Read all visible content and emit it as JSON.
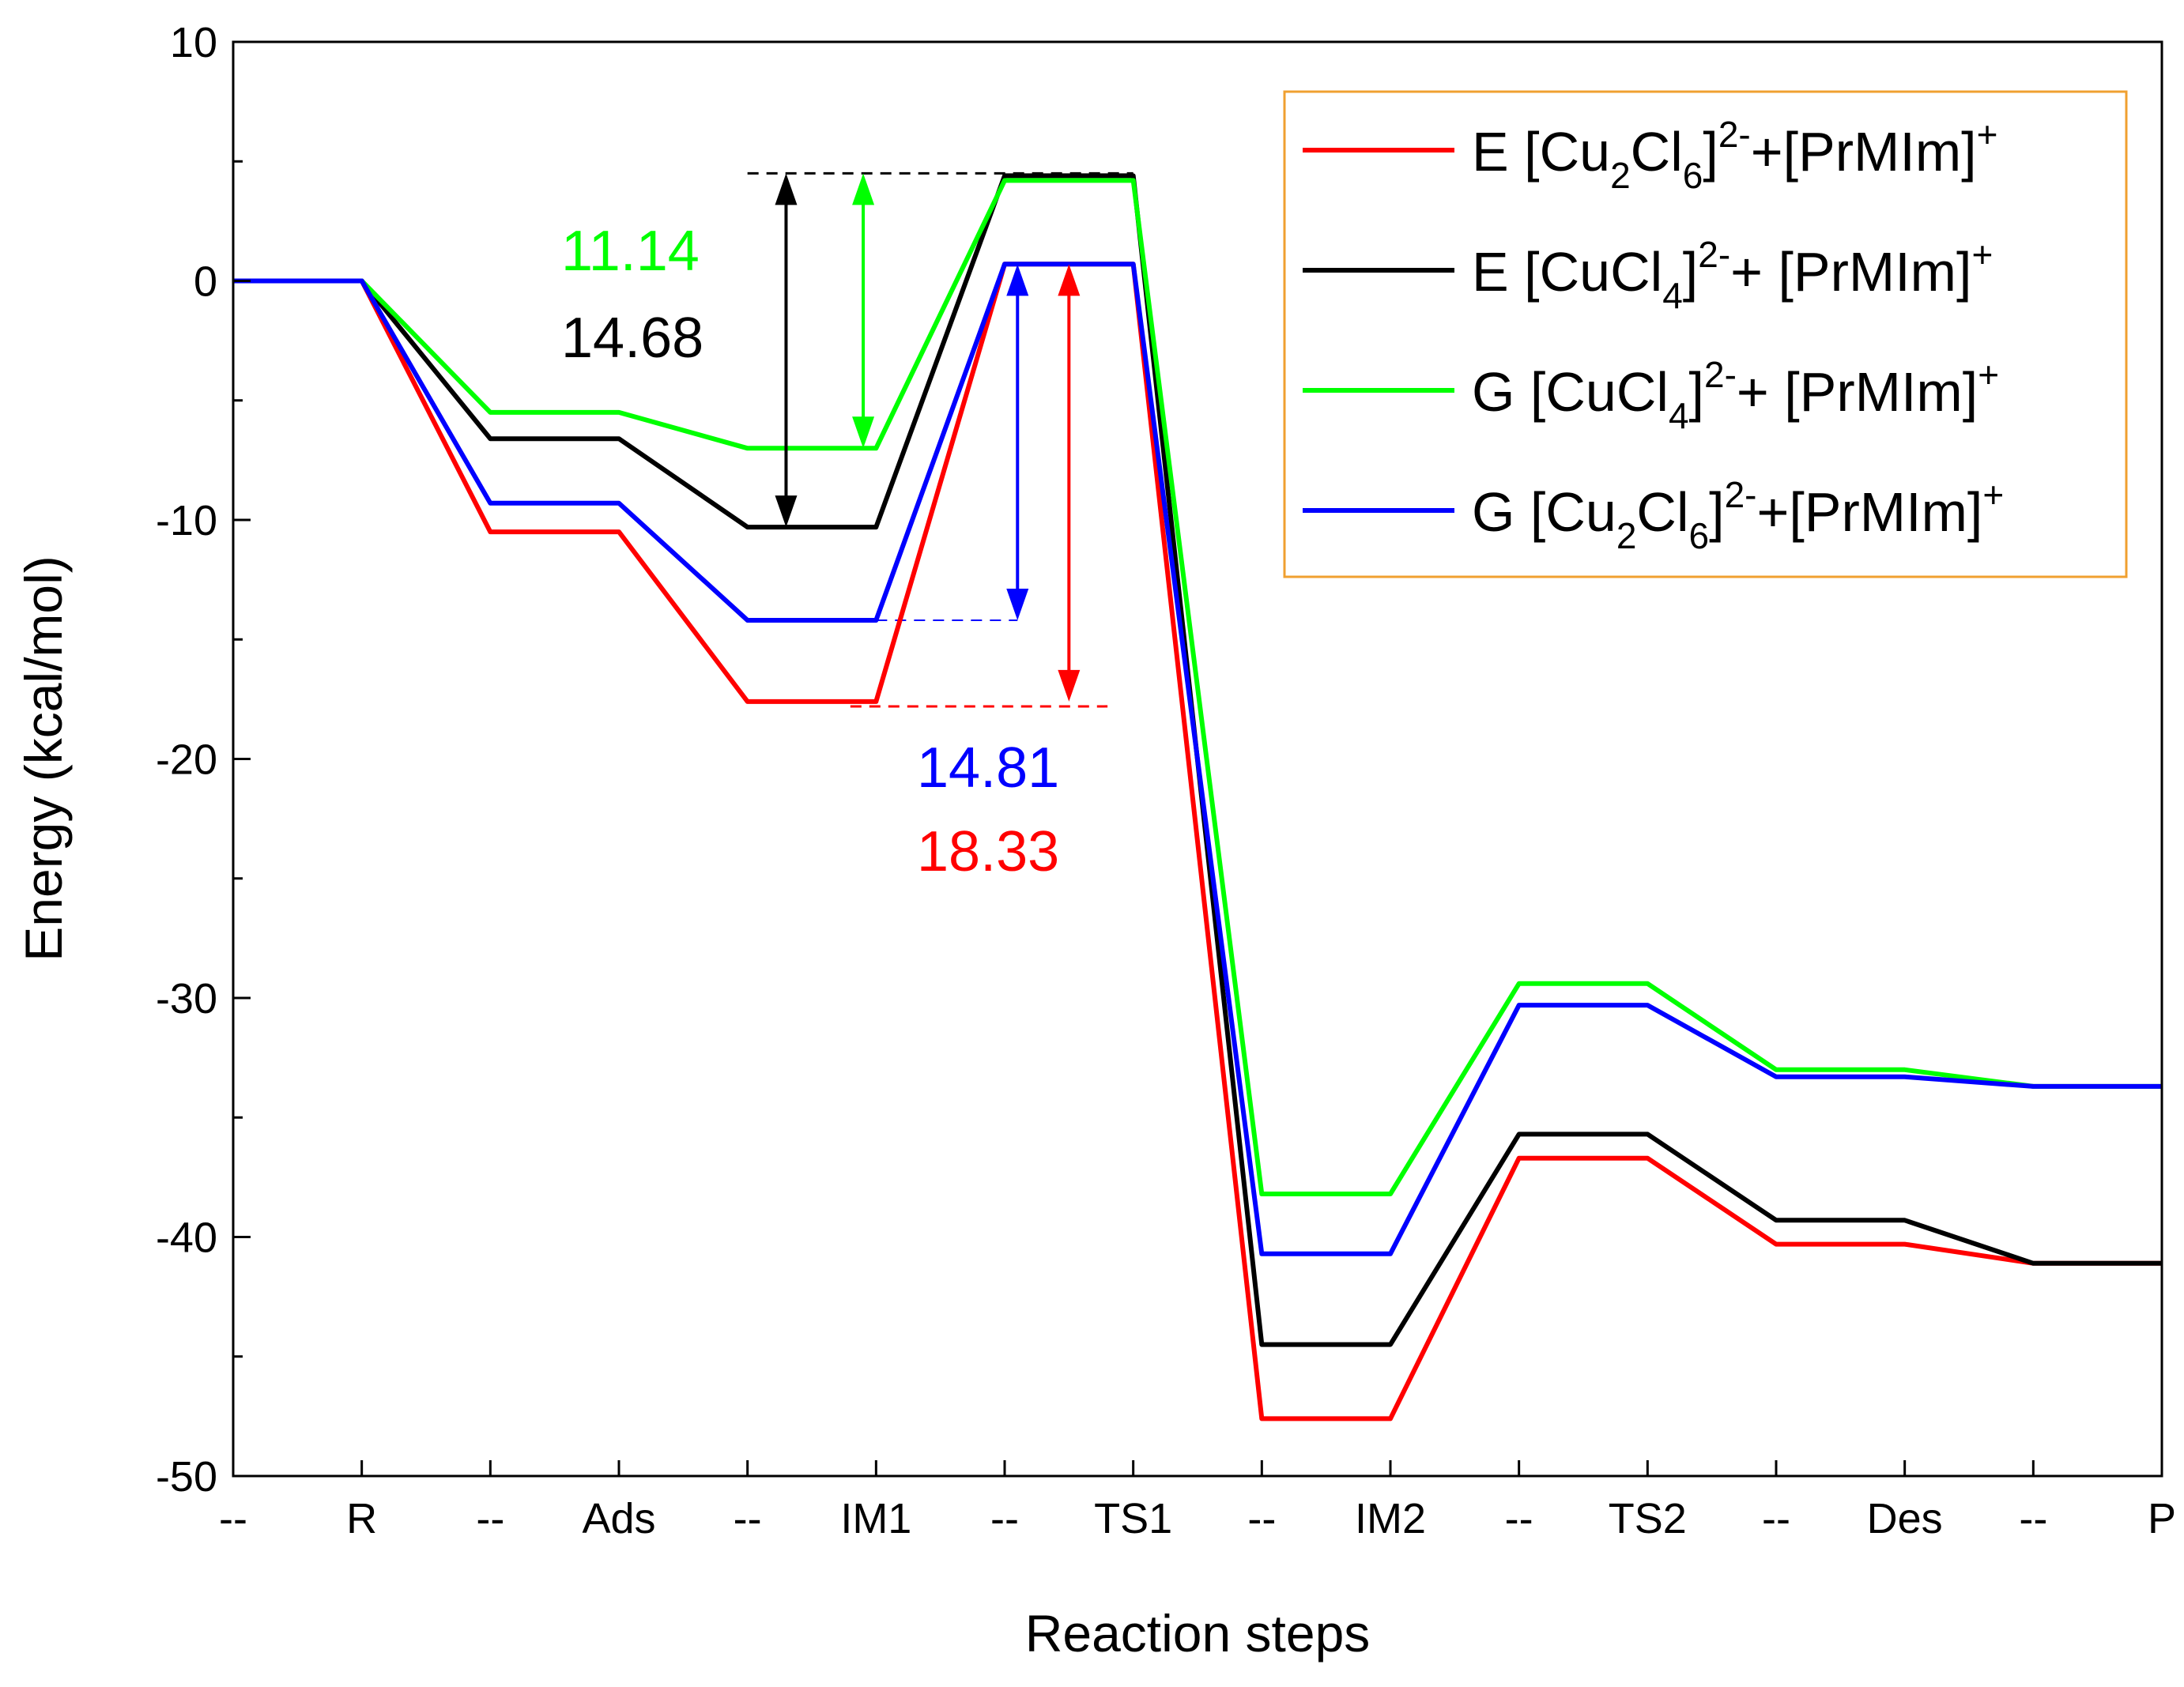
{
  "chart_data": {
    "type": "line",
    "title": "",
    "xlabel": "Reaction steps",
    "ylabel": "Energy (kcal/mol)",
    "ylim": [
      -50,
      10
    ],
    "yticks": [
      10,
      0,
      -10,
      -20,
      -30,
      -40,
      -50
    ],
    "x_range": [
      0,
      15
    ],
    "x_ticks": [
      {
        "x": 0,
        "label": "--"
      },
      {
        "x": 1,
        "label": "R"
      },
      {
        "x": 2,
        "label": "--"
      },
      {
        "x": 3,
        "label": "Ads"
      },
      {
        "x": 4,
        "label": "--"
      },
      {
        "x": 5,
        "label": "IM1"
      },
      {
        "x": 6,
        "label": "--"
      },
      {
        "x": 7,
        "label": "TS1"
      },
      {
        "x": 8,
        "label": "--"
      },
      {
        "x": 9,
        "label": "IM2"
      },
      {
        "x": 10,
        "label": "--"
      },
      {
        "x": 11,
        "label": "TS2"
      },
      {
        "x": 12,
        "label": "--"
      },
      {
        "x": 13,
        "label": "Des"
      },
      {
        "x": 14,
        "label": "--"
      },
      {
        "x": 15,
        "label": "P"
      }
    ],
    "series": [
      {
        "id": "e-cu2cl6",
        "name_prefix": "E [Cu",
        "name_sub1": "2",
        "name_mid": "Cl",
        "name_sub2": "6",
        "name_sup1": "2-",
        "name_mid2": "+[PrMIm]",
        "name_sup2": "+",
        "color": "#ff0000",
        "points": [
          [
            0,
            0
          ],
          [
            1,
            0
          ],
          [
            2,
            -10.5
          ],
          [
            3,
            -10.5
          ],
          [
            4,
            -17.6
          ],
          [
            5,
            -17.6
          ],
          [
            6,
            0.7
          ],
          [
            7,
            0.7
          ],
          [
            8,
            -47.6
          ],
          [
            9,
            -47.6
          ],
          [
            10,
            -36.7
          ],
          [
            11,
            -36.7
          ],
          [
            12,
            -40.3
          ],
          [
            13,
            -40.3
          ],
          [
            14,
            -41.1
          ],
          [
            15,
            -41.1
          ]
        ]
      },
      {
        "id": "e-cucl4",
        "name_prefix": "E [Cu",
        "name_sub1": "",
        "name_mid": "Cl",
        "name_sub2": "4",
        "name_sup1": "2-",
        "name_mid2": "+ [PrMIm]",
        "name_sup2": "+",
        "color": "#000000",
        "points": [
          [
            0,
            0
          ],
          [
            1,
            0
          ],
          [
            2,
            -6.6
          ],
          [
            3,
            -6.6
          ],
          [
            4,
            -10.3
          ],
          [
            5,
            -10.3
          ],
          [
            6,
            4.4
          ],
          [
            7,
            4.4
          ],
          [
            8,
            -44.5
          ],
          [
            9,
            -44.5
          ],
          [
            10,
            -35.7
          ],
          [
            11,
            -35.7
          ],
          [
            12,
            -39.3
          ],
          [
            13,
            -39.3
          ],
          [
            14,
            -41.1
          ],
          [
            15,
            -41.1
          ]
        ]
      },
      {
        "id": "g-cucl4",
        "name_prefix": "G [Cu",
        "name_sub1": "",
        "name_mid": "Cl",
        "name_sub2": "4",
        "name_sup1": "2-",
        "name_mid2": "+ [PrMIm]",
        "name_sup2": "+",
        "color": "#00ff00",
        "points": [
          [
            0,
            0
          ],
          [
            1,
            0
          ],
          [
            2,
            -5.5
          ],
          [
            3,
            -5.5
          ],
          [
            4,
            -7.0
          ],
          [
            5,
            -7.0
          ],
          [
            6,
            4.2
          ],
          [
            7,
            4.2
          ],
          [
            8,
            -38.2
          ],
          [
            9,
            -38.2
          ],
          [
            10,
            -29.4
          ],
          [
            11,
            -29.4
          ],
          [
            12,
            -33.0
          ],
          [
            13,
            -33.0
          ],
          [
            14,
            -33.7
          ],
          [
            15,
            -33.7
          ]
        ]
      },
      {
        "id": "g-cu2cl6",
        "name_prefix": "G [Cu",
        "name_sub1": "2",
        "name_mid": "Cl",
        "name_sub2": "6",
        "name_sup1": "2-",
        "name_mid2": "+[PrMIm]",
        "name_sup2": "+",
        "color": "#0000ff",
        "points": [
          [
            0,
            0
          ],
          [
            1,
            0
          ],
          [
            2,
            -9.3
          ],
          [
            3,
            -9.3
          ],
          [
            4,
            -14.2
          ],
          [
            5,
            -14.2
          ],
          [
            6,
            0.7
          ],
          [
            7,
            0.7
          ],
          [
            8,
            -40.7
          ],
          [
            9,
            -40.7
          ],
          [
            10,
            -30.3
          ],
          [
            11,
            -30.3
          ],
          [
            12,
            -33.3
          ],
          [
            13,
            -33.3
          ],
          [
            14,
            -33.7
          ],
          [
            15,
            -33.7
          ]
        ]
      }
    ],
    "legend_position": "top-right",
    "annotations": [
      {
        "id": "green",
        "label": "11.14",
        "color": "#00ff00",
        "x": 4.9,
        "y_top": 4.5,
        "y_bottom": -7.0
      },
      {
        "id": "black",
        "label": "14.68",
        "color": "#000000",
        "x": 4.3,
        "y_top": 4.5,
        "y_bottom": -10.3
      },
      {
        "id": "blue",
        "label": "14.81",
        "color": "#0000ff",
        "x": 6.1,
        "y_top": 0.7,
        "y_bottom": -14.2
      },
      {
        "id": "red",
        "label": "18.33",
        "color": "#ff0000",
        "x": 6.5,
        "y_top": 0.7,
        "y_bottom": -17.6
      }
    ]
  }
}
